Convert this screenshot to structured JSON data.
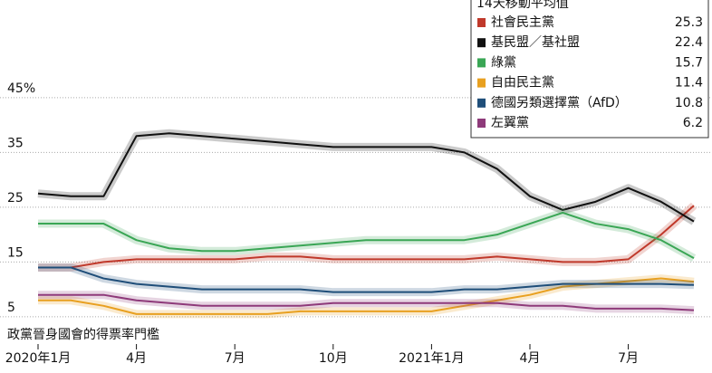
{
  "chart_data": {
    "type": "line",
    "legend_title": "14天移動平均值",
    "annotation": "政黨晉身國會的得票率門檻",
    "categories": [
      "2020年1月",
      null,
      null,
      "4月",
      null,
      null,
      "7月",
      null,
      null,
      "10月",
      null,
      null,
      "2021年1月",
      null,
      null,
      "4月",
      null,
      null,
      "7月",
      null,
      null
    ],
    "ylim": [
      3,
      50
    ],
    "yticks": [
      {
        "value": 5,
        "label": "5"
      },
      {
        "value": 15,
        "label": "15"
      },
      {
        "value": 25,
        "label": "25"
      },
      {
        "value": 35,
        "label": "35"
      },
      {
        "value": 45,
        "label": "45%"
      }
    ],
    "grid": true,
    "legend": "top-right",
    "series": [
      {
        "name": "社會民主黨",
        "color": "#c0392b",
        "latest": 25.3,
        "values": [
          14,
          14,
          15,
          15.5,
          15.5,
          15.5,
          15.5,
          16,
          16,
          15.5,
          15.5,
          15.5,
          15.5,
          15.5,
          16,
          15.5,
          15,
          15,
          15.5,
          20,
          25.3
        ]
      },
      {
        "name": "基民盟／基社盟",
        "color": "#111111",
        "latest": 22.4,
        "values": [
          27.5,
          27,
          27,
          38,
          38.5,
          38,
          37.5,
          37,
          36.5,
          36,
          36,
          36,
          36,
          35,
          32,
          27,
          24.5,
          26,
          28.5,
          26,
          22.4
        ]
      },
      {
        "name": "綠黨",
        "color": "#3aa655",
        "latest": 15.7,
        "values": [
          22,
          22,
          22,
          19,
          17.5,
          17,
          17,
          17.5,
          18,
          18.5,
          19,
          19,
          19,
          19,
          20,
          22,
          24,
          22,
          21,
          19,
          15.7
        ]
      },
      {
        "name": "自由民主黨",
        "color": "#e8a020",
        "latest": 11.4,
        "values": [
          8,
          8,
          7,
          5.5,
          5.5,
          5.5,
          5.5,
          5.5,
          6,
          6,
          6,
          6,
          6,
          7,
          8,
          9,
          10.5,
          11,
          11.5,
          12,
          11.4
        ]
      },
      {
        "name": "德國另類選擇黨（AfD）",
        "color": "#1f4e79",
        "latest": 10.8,
        "values": [
          14,
          14,
          12,
          11,
          10.5,
          10,
          10,
          10,
          10,
          9.5,
          9.5,
          9.5,
          9.5,
          10,
          10,
          10.5,
          11,
          11,
          11,
          11,
          10.8
        ]
      },
      {
        "name": "左翼黨",
        "color": "#8e3a7a",
        "latest": 6.2,
        "values": [
          9,
          9,
          9,
          8,
          7.5,
          7,
          7,
          7,
          7,
          7.5,
          7.5,
          7.5,
          7.5,
          7.5,
          7.5,
          7,
          7,
          6.5,
          6.5,
          6.5,
          6.2
        ]
      }
    ]
  }
}
